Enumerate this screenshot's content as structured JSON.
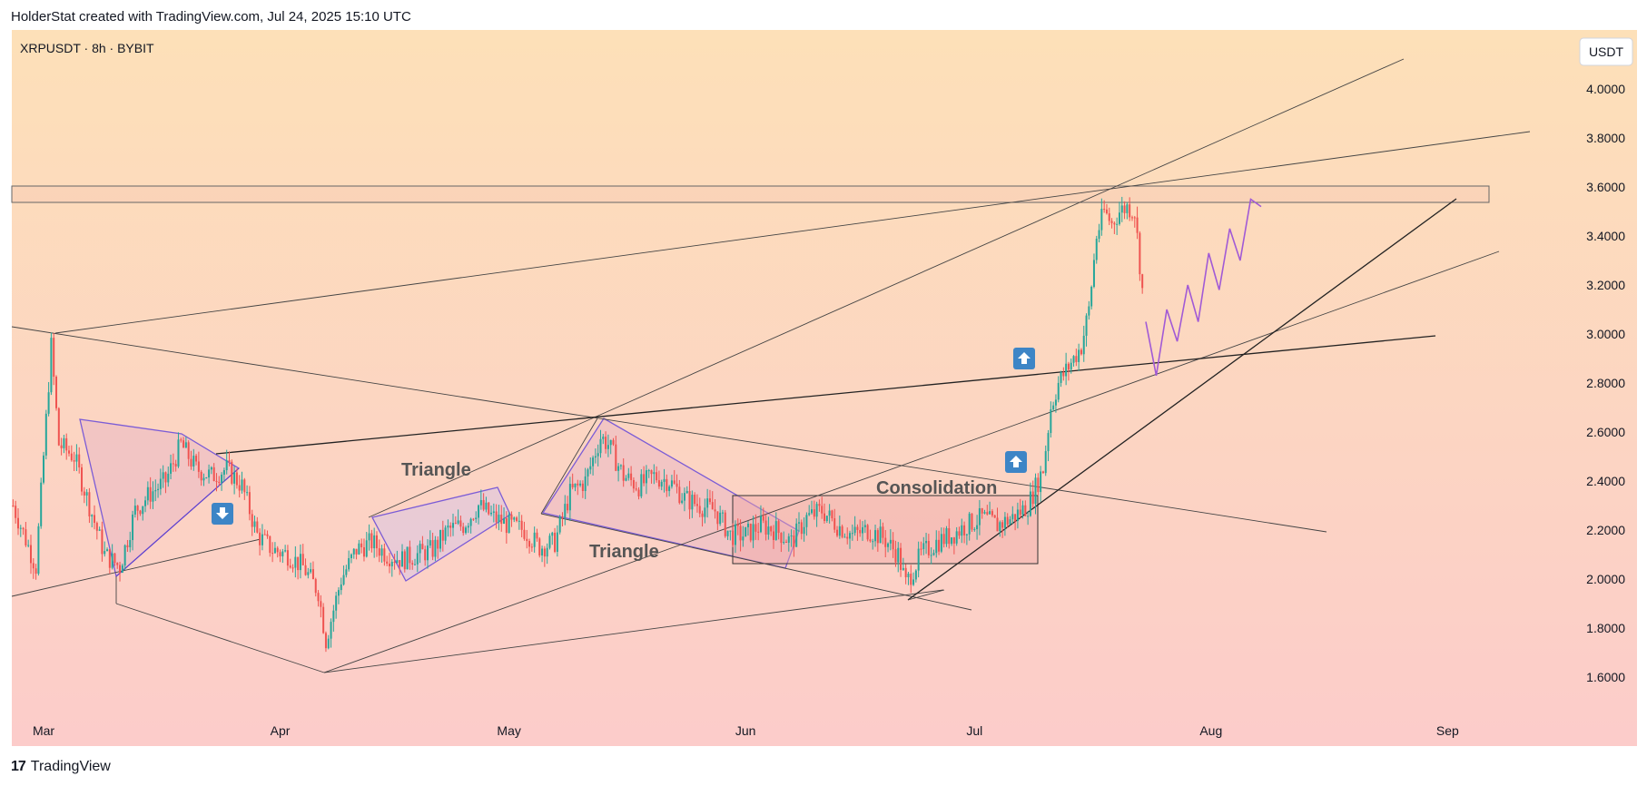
{
  "header": {
    "credit": "HolderStat created with TradingView.com, Jul 24, 2025 15:10 UTC"
  },
  "footer": {
    "logo": "17",
    "brand": "TradingView"
  },
  "symbol_info": "XRPUSDT · 8h · BYBIT",
  "currency_badge": "USDT",
  "colors": {
    "bg_top": "#fde0b8",
    "bg_bottom": "#fcccca",
    "up": "#26a69a",
    "down": "#ef5350",
    "pattern": "#7b5cd6",
    "arrow": "#3d85c6"
  },
  "chart_data": {
    "type": "candlestick",
    "y_axis": {
      "ticks": [
        "4.0000",
        "3.8000",
        "3.6000",
        "3.4000",
        "3.2000",
        "3.0000",
        "2.8000",
        "2.6000",
        "2.4000",
        "2.2000",
        "2.0000",
        "1.8000",
        "1.6000"
      ],
      "range": [
        1.38,
        4.25
      ]
    },
    "x_axis": {
      "ticks": [
        "Mar",
        "Apr",
        "May",
        "Jun",
        "Jul",
        "Aug",
        "Sep"
      ]
    },
    "annotations": [
      "Triangle",
      "Triangle",
      "Consolidation"
    ],
    "price_path": [
      [
        "2025-02-25",
        2.3
      ],
      [
        "2025-02-28",
        2.05
      ],
      [
        "2025-03-02",
        2.95
      ],
      [
        "2025-03-03",
        2.55
      ],
      [
        "2025-03-05",
        2.5
      ],
      [
        "2025-03-07",
        2.3
      ],
      [
        "2025-03-09",
        2.1
      ],
      [
        "2025-03-11",
        2.05
      ],
      [
        "2025-03-13",
        2.28
      ],
      [
        "2025-03-15",
        2.35
      ],
      [
        "2025-03-17",
        2.4
      ],
      [
        "2025-03-19",
        2.55
      ],
      [
        "2025-03-21",
        2.45
      ],
      [
        "2025-03-23",
        2.42
      ],
      [
        "2025-03-25",
        2.45
      ],
      [
        "2025-03-27",
        2.38
      ],
      [
        "2025-03-29",
        2.18
      ],
      [
        "2025-03-31",
        2.12
      ],
      [
        "2025-04-02",
        2.1
      ],
      [
        "2025-04-04",
        2.05
      ],
      [
        "2025-04-06",
        1.95
      ],
      [
        "2025-04-07",
        1.75
      ],
      [
        "2025-04-09",
        2.0
      ],
      [
        "2025-04-11",
        2.12
      ],
      [
        "2025-04-13",
        2.15
      ],
      [
        "2025-04-15",
        2.1
      ],
      [
        "2025-04-17",
        2.08
      ],
      [
        "2025-04-19",
        2.1
      ],
      [
        "2025-04-21",
        2.12
      ],
      [
        "2025-04-23",
        2.2
      ],
      [
        "2025-04-25",
        2.22
      ],
      [
        "2025-04-27",
        2.3
      ],
      [
        "2025-04-29",
        2.25
      ],
      [
        "2025-05-01",
        2.22
      ],
      [
        "2025-05-03",
        2.2
      ],
      [
        "2025-05-05",
        2.13
      ],
      [
        "2025-05-07",
        2.15
      ],
      [
        "2025-05-09",
        2.35
      ],
      [
        "2025-05-11",
        2.4
      ],
      [
        "2025-05-13",
        2.58
      ],
      [
        "2025-05-14",
        2.55
      ],
      [
        "2025-05-16",
        2.42
      ],
      [
        "2025-05-18",
        2.38
      ],
      [
        "2025-05-20",
        2.42
      ],
      [
        "2025-05-22",
        2.4
      ],
      [
        "2025-05-24",
        2.33
      ],
      [
        "2025-05-26",
        2.3
      ],
      [
        "2025-05-28",
        2.28
      ],
      [
        "2025-05-30",
        2.18
      ],
      [
        "2025-06-01",
        2.18
      ],
      [
        "2025-06-03",
        2.22
      ],
      [
        "2025-06-05",
        2.2
      ],
      [
        "2025-06-07",
        2.15
      ],
      [
        "2025-06-09",
        2.25
      ],
      [
        "2025-06-11",
        2.28
      ],
      [
        "2025-06-13",
        2.22
      ],
      [
        "2025-06-15",
        2.18
      ],
      [
        "2025-06-17",
        2.2
      ],
      [
        "2025-06-19",
        2.17
      ],
      [
        "2025-06-21",
        2.1
      ],
      [
        "2025-06-22",
        1.98
      ],
      [
        "2025-06-24",
        2.1
      ],
      [
        "2025-06-26",
        2.15
      ],
      [
        "2025-06-28",
        2.18
      ],
      [
        "2025-06-30",
        2.22
      ],
      [
        "2025-07-02",
        2.25
      ],
      [
        "2025-07-04",
        2.22
      ],
      [
        "2025-07-06",
        2.25
      ],
      [
        "2025-07-08",
        2.3
      ],
      [
        "2025-07-10",
        2.45
      ],
      [
        "2025-07-11",
        2.7
      ],
      [
        "2025-07-12",
        2.8
      ],
      [
        "2025-07-13",
        2.85
      ],
      [
        "2025-07-15",
        2.95
      ],
      [
        "2025-07-16",
        3.1
      ],
      [
        "2025-07-17",
        3.4
      ],
      [
        "2025-07-18",
        3.5
      ],
      [
        "2025-07-19",
        3.45
      ],
      [
        "2025-07-20",
        3.5
      ],
      [
        "2025-07-21",
        3.52
      ],
      [
        "2025-07-22",
        3.5
      ],
      [
        "2025-07-23",
        3.18
      ]
    ],
    "projection": [
      3.05,
      2.83,
      3.1,
      2.97,
      3.2,
      3.05,
      3.33,
      3.18,
      3.43,
      3.3,
      3.55,
      3.52
    ],
    "resistance_zone": [
      3.54,
      3.61
    ],
    "consolidation_box": [
      2.07,
      2.34
    ]
  }
}
